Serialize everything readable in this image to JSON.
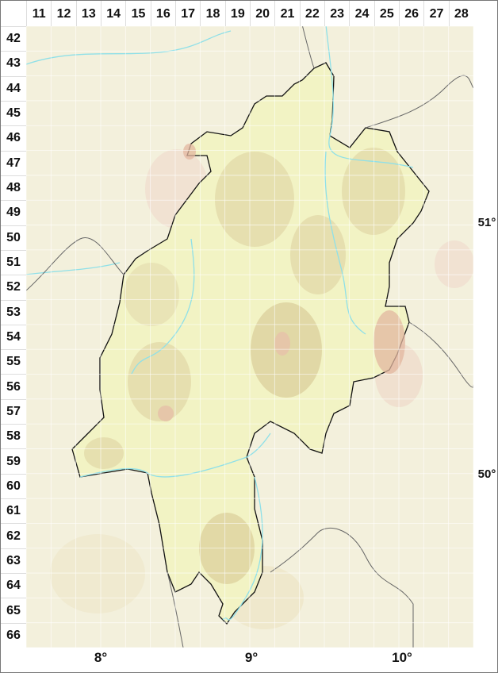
{
  "grid": {
    "columns": [
      "11",
      "12",
      "13",
      "14",
      "15",
      "16",
      "17",
      "18",
      "19",
      "20",
      "21",
      "22",
      "23",
      "24",
      "25",
      "26",
      "27",
      "28"
    ],
    "rows": [
      "42",
      "43",
      "44",
      "45",
      "46",
      "47",
      "48",
      "49",
      "50",
      "51",
      "52",
      "53",
      "54",
      "55",
      "56",
      "57",
      "58",
      "59",
      "60",
      "61",
      "62",
      "63",
      "64",
      "65",
      "66"
    ]
  },
  "longitude_labels": [
    {
      "label": "8°",
      "value": 8
    },
    {
      "label": "9°",
      "value": 9
    },
    {
      "label": "10°",
      "value": 10
    }
  ],
  "latitude_labels": [
    {
      "label": "51°",
      "value": 51
    },
    {
      "label": "50°",
      "value": 50
    }
  ],
  "colors": {
    "background": "#f3f0dc",
    "region_fill": "#f2f3c4",
    "relief_low": "#e2d9a8",
    "relief_high": "#e3b7a0",
    "border": "#111111",
    "river": "#8fe0e8",
    "grid": "#ffffff"
  }
}
